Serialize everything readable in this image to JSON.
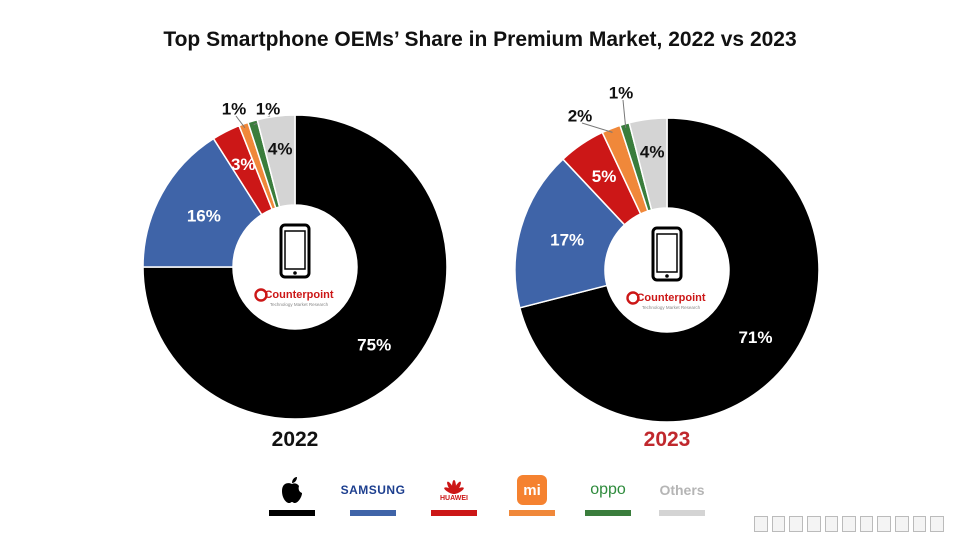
{
  "chart_title": "Top Smartphone OEMs’ Share in Premium Market, 2022 vs 2023",
  "chart_data": [
    {
      "type": "pie",
      "title": "2022",
      "year_color": "#111111",
      "categories": [
        "Apple",
        "Samsung",
        "Huawei",
        "Xiaomi",
        "OPPO",
        "Others"
      ],
      "values": [
        75,
        16,
        3,
        1,
        1,
        4
      ],
      "labels": [
        "75%",
        "16%",
        "3%",
        "1%",
        "1%",
        "4%"
      ]
    },
    {
      "type": "pie",
      "title": "2023",
      "year_color": "#c0282d",
      "categories": [
        "Apple",
        "Samsung",
        "Huawei",
        "Xiaomi",
        "OPPO",
        "Others"
      ],
      "values": [
        71,
        17,
        5,
        2,
        1,
        4
      ],
      "labels": [
        "71%",
        "17%",
        "5%",
        "2%",
        "1%",
        "4%"
      ]
    }
  ],
  "colors": {
    "Apple": "#000000",
    "Samsung": "#3f64a8",
    "Huawei": "#cc1717",
    "Xiaomi": "#f0883a",
    "OPPO": "#3a7d3c",
    "Others": "#d4d4d4"
  },
  "center_logo": {
    "icon": "smartphone-icon",
    "brand": "Counterpoint",
    "tagline": "Technology Market Research"
  },
  "legend": {
    "samsung": "SAMSUNG",
    "huawei": "HUAWEI",
    "xiaomi": "mi",
    "oppo": "oppo",
    "others": "Others"
  }
}
